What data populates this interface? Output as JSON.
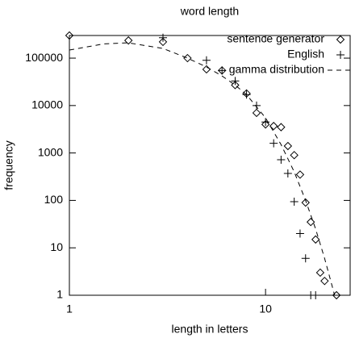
{
  "chart_data": {
    "type": "scatter",
    "title": "word length",
    "x_label": "length in letters",
    "y_label": "frequency",
    "xscale": "log",
    "yscale": "log",
    "xlim": [
      1,
      27
    ],
    "ylim": [
      1,
      300000
    ],
    "xticks": [
      1,
      10
    ],
    "yticks": [
      1,
      10,
      100,
      1000,
      10000,
      100000
    ],
    "legend": "top-right",
    "series": [
      {
        "name": "sentence generator",
        "color": "#000000",
        "marker": "diamond",
        "x": [
          1,
          2,
          3,
          4,
          5,
          6,
          7,
          8,
          9,
          10,
          11,
          12,
          13,
          14,
          15,
          16,
          17,
          18,
          19,
          20,
          23
        ],
        "values": [
          300000,
          236000,
          220000,
          100000,
          58000,
          55000,
          27000,
          18000,
          7000,
          4000,
          3700,
          3500,
          1400,
          900,
          350,
          90,
          35,
          15,
          3,
          2,
          1
        ]
      },
      {
        "name": "English",
        "color": "#000000",
        "marker": "plus",
        "x": [
          3,
          5,
          6,
          7,
          8,
          9,
          10,
          11,
          12,
          13,
          14,
          15,
          16,
          17,
          18
        ],
        "values": [
          270000,
          90000,
          55000,
          33000,
          17000,
          10000,
          4500,
          1600,
          720,
          370,
          94,
          20,
          6,
          1,
          1
        ]
      },
      {
        "name": "gamma distribution",
        "color": "#000000",
        "marker": "dashed-line",
        "x": [
          1,
          1.5,
          2,
          3,
          4,
          5,
          6,
          7,
          8,
          10,
          12,
          14,
          16,
          18,
          20,
          22.5
        ],
        "values": [
          148000,
          200000,
          210000,
          160000,
          100000,
          65000,
          42000,
          27000,
          17000,
          5500,
          1500,
          400,
          100,
          25,
          6,
          1
        ]
      }
    ]
  }
}
